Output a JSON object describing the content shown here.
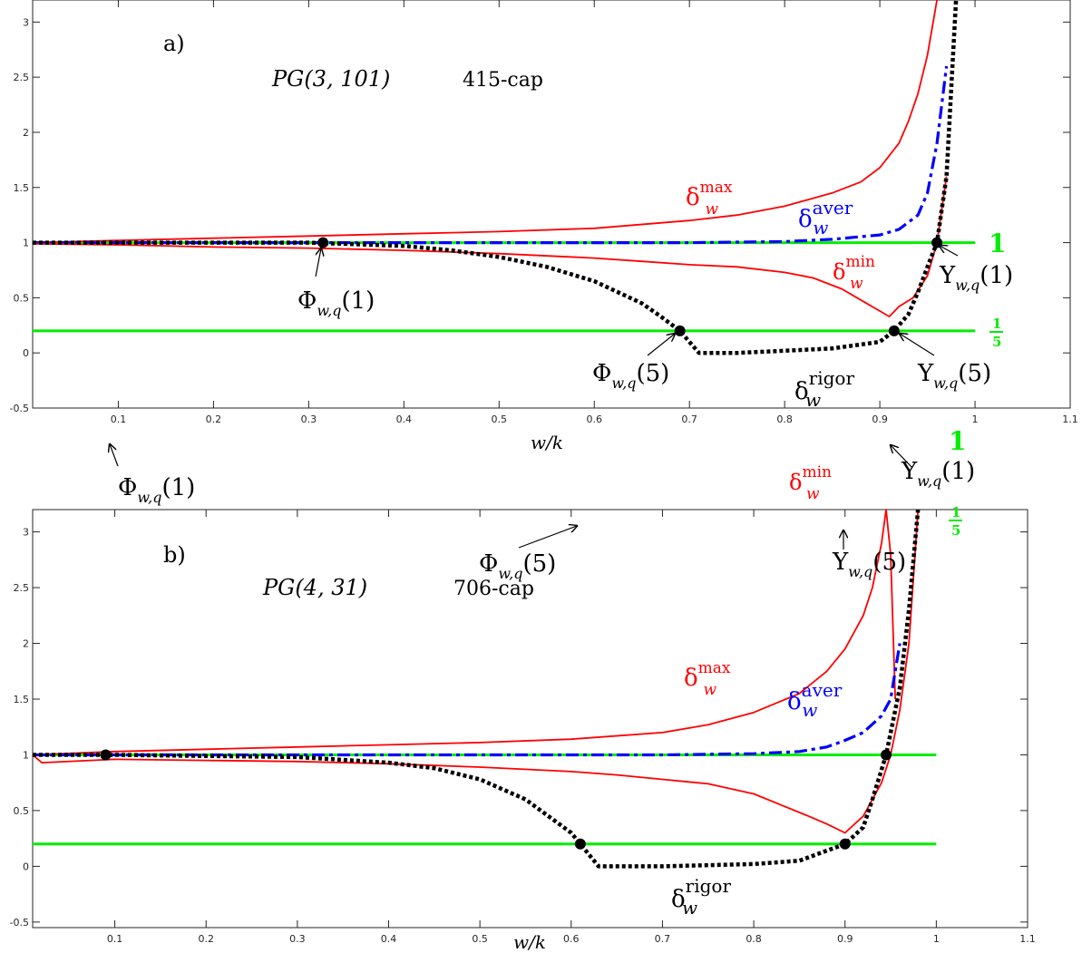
{
  "chart_data": [
    {
      "type": "line",
      "panel_label": "a)",
      "title": "PG(3, 101)",
      "subtitle": "415-cap",
      "xlabel": "w/k",
      "ylabel": "",
      "xlim": [
        0.01,
        1.1
      ],
      "ylim": [
        -0.5,
        3.2
      ],
      "xticks": [
        "0.1",
        "0.2",
        "0.3",
        "0.4",
        "0.5",
        "0.6",
        "0.7",
        "0.8",
        "0.9",
        "1",
        "1.1"
      ],
      "yticks": [
        "-0.5",
        "0",
        "0.5",
        "1",
        "1.5",
        "2",
        "2.5",
        "3"
      ],
      "hlines": [
        {
          "y": 1,
          "label": "1",
          "color": "#00ee00"
        },
        {
          "y": 0.2,
          "label": "1/5",
          "color": "#00ee00"
        }
      ],
      "series": [
        {
          "name": "δ_w^max",
          "color": "#ff0000",
          "style": "solid",
          "x": [
            0.01,
            0.1,
            0.2,
            0.3,
            0.4,
            0.5,
            0.6,
            0.7,
            0.75,
            0.8,
            0.85,
            0.88,
            0.9,
            0.92,
            0.93,
            0.94,
            0.95,
            0.96
          ],
          "y": [
            1.0,
            1.02,
            1.04,
            1.06,
            1.08,
            1.1,
            1.13,
            1.2,
            1.25,
            1.33,
            1.45,
            1.55,
            1.68,
            1.9,
            2.1,
            2.35,
            2.7,
            3.2
          ]
        },
        {
          "name": "δ_w^aver",
          "color": "#0000ff",
          "style": "dashdot",
          "x": [
            0.01,
            0.2,
            0.4,
            0.6,
            0.7,
            0.8,
            0.85,
            0.9,
            0.92,
            0.94,
            0.95,
            0.96,
            0.97
          ],
          "y": [
            1.0,
            1.0,
            1.0,
            1.0,
            1.0,
            1.01,
            1.03,
            1.07,
            1.12,
            1.25,
            1.45,
            1.9,
            2.6
          ]
        },
        {
          "name": "δ_w^min",
          "color": "#ff0000",
          "style": "solid",
          "x": [
            0.01,
            0.1,
            0.2,
            0.3,
            0.4,
            0.5,
            0.6,
            0.65,
            0.7,
            0.75,
            0.8,
            0.83,
            0.86,
            0.88,
            0.9,
            0.91,
            0.92,
            0.935,
            0.95,
            0.96,
            0.97
          ],
          "y": [
            0.99,
            0.98,
            0.96,
            0.95,
            0.93,
            0.9,
            0.86,
            0.83,
            0.8,
            0.78,
            0.73,
            0.68,
            0.58,
            0.48,
            0.38,
            0.33,
            0.42,
            0.5,
            0.7,
            1.0,
            1.6
          ]
        },
        {
          "name": "δ_w^rigor",
          "color": "#000000",
          "style": "dotted",
          "x": [
            0.01,
            0.2,
            0.3,
            0.4,
            0.45,
            0.5,
            0.55,
            0.6,
            0.65,
            0.67,
            0.69,
            0.71,
            0.75,
            0.8,
            0.85,
            0.9,
            0.915,
            0.93,
            0.94,
            0.95,
            0.96,
            0.97,
            0.98
          ],
          "y": [
            1.0,
            1.0,
            1.0,
            0.97,
            0.93,
            0.87,
            0.78,
            0.65,
            0.45,
            0.33,
            0.2,
            0.0,
            0.0,
            0.02,
            0.04,
            0.1,
            0.2,
            0.35,
            0.55,
            0.78,
            1.0,
            1.6,
            3.2
          ]
        }
      ],
      "points": [
        {
          "x": 0.315,
          "y": 1.0,
          "label": "Φ_{w,q}(1)"
        },
        {
          "x": 0.69,
          "y": 0.2,
          "label": "Φ_{w,q}(5)"
        },
        {
          "x": 0.915,
          "y": 0.2,
          "label": "Υ_{w,q}(5)"
        },
        {
          "x": 0.96,
          "y": 1.0,
          "label": "Υ_{w,q}(1)"
        }
      ]
    },
    {
      "type": "line",
      "panel_label": "b)",
      "title": "PG(4, 31)",
      "subtitle": "706-cap",
      "xlabel": "w/k",
      "ylabel": "",
      "xlim": [
        0.01,
        1.1
      ],
      "ylim": [
        -0.55,
        3.2
      ],
      "xticks": [
        "0.1",
        "0.2",
        "0.3",
        "0.4",
        "0.5",
        "0.6",
        "0.7",
        "0.8",
        "0.9",
        "1",
        "1.1"
      ],
      "yticks": [
        "-0.5",
        "0",
        "0.5",
        "1",
        "1.5",
        "2",
        "2.5",
        "3"
      ],
      "hlines": [
        {
          "y": 1,
          "label": "1",
          "color": "#00ee00"
        },
        {
          "y": 0.2,
          "label": "1/5",
          "color": "#00ee00"
        }
      ],
      "series": [
        {
          "name": "δ_w^max",
          "color": "#ff0000",
          "style": "solid",
          "x": [
            0.01,
            0.1,
            0.2,
            0.3,
            0.4,
            0.5,
            0.6,
            0.7,
            0.75,
            0.8,
            0.85,
            0.88,
            0.9,
            0.92,
            0.93,
            0.94,
            0.945,
            0.95,
            0.955
          ],
          "y": [
            1.0,
            1.03,
            1.05,
            1.07,
            1.09,
            1.11,
            1.14,
            1.2,
            1.27,
            1.38,
            1.55,
            1.75,
            1.95,
            2.25,
            2.5,
            2.9,
            3.2,
            2.8,
            1.5
          ]
        },
        {
          "name": "δ_w^aver",
          "color": "#0000ff",
          "style": "dashdot",
          "x": [
            0.01,
            0.2,
            0.4,
            0.6,
            0.7,
            0.8,
            0.85,
            0.88,
            0.9,
            0.92,
            0.94,
            0.95,
            0.96
          ],
          "y": [
            1.0,
            1.0,
            1.0,
            1.0,
            1.0,
            1.01,
            1.03,
            1.07,
            1.13,
            1.2,
            1.35,
            1.5,
            2.0
          ]
        },
        {
          "name": "δ_w^min",
          "color": "#ff0000",
          "style": "solid",
          "x": [
            0.01,
            0.02,
            0.1,
            0.2,
            0.3,
            0.4,
            0.5,
            0.6,
            0.65,
            0.7,
            0.75,
            0.8,
            0.83,
            0.86,
            0.88,
            0.9,
            0.92,
            0.94,
            0.95,
            0.96,
            0.97,
            0.98
          ],
          "y": [
            1.0,
            0.93,
            0.96,
            0.95,
            0.94,
            0.92,
            0.89,
            0.85,
            0.82,
            0.78,
            0.74,
            0.65,
            0.55,
            0.45,
            0.38,
            0.3,
            0.45,
            0.75,
            1.0,
            1.4,
            2.0,
            3.2
          ]
        },
        {
          "name": "δ_w^rigor",
          "color": "#000000",
          "style": "dotted",
          "x": [
            0.01,
            0.1,
            0.2,
            0.3,
            0.4,
            0.45,
            0.5,
            0.55,
            0.6,
            0.61,
            0.63,
            0.7,
            0.8,
            0.85,
            0.9,
            0.92,
            0.93,
            0.945,
            0.96,
            0.97,
            0.98
          ],
          "y": [
            1.0,
            1.0,
            0.99,
            0.98,
            0.93,
            0.88,
            0.78,
            0.6,
            0.3,
            0.2,
            0.0,
            0.0,
            0.02,
            0.05,
            0.2,
            0.35,
            0.6,
            1.0,
            1.6,
            2.3,
            3.2
          ]
        }
      ],
      "points": [
        {
          "x": 0.09,
          "y": 1.0,
          "label": "Φ_{w,q}(1)"
        },
        {
          "x": 0.61,
          "y": 0.2,
          "label": "Φ_{w,q}(5)"
        },
        {
          "x": 0.9,
          "y": 0.2,
          "label": "Υ_{w,q}(5)"
        },
        {
          "x": 0.945,
          "y": 1.0,
          "label": "Υ_{w,q}(1)"
        }
      ]
    }
  ],
  "panels": [
    {
      "panel_label": "a)",
      "title": "PG(3, 101)",
      "subtitle": "415-cap",
      "xlabel": "w/k",
      "label_max": {
        "base": "δ",
        "sup": "max",
        "sub": "w"
      },
      "label_aver": {
        "base": "δ",
        "sup": "aver",
        "sub": "w"
      },
      "label_min": {
        "base": "δ",
        "sup": "min",
        "sub": "w"
      },
      "label_rigor": {
        "base": "δ",
        "sup": "rigor",
        "sub": "w"
      },
      "hline_one": "1",
      "hline_fifth_num": "1",
      "hline_fifth_den": "5",
      "phi1": {
        "base": "Φ",
        "sub": "w,q",
        "arg": "(1)"
      },
      "phi5": {
        "base": "Φ",
        "sub": "w,q",
        "arg": "(5)"
      },
      "ups5": {
        "base": "Υ",
        "sub": "w,q",
        "arg": "(5)"
      },
      "ups1": {
        "base": "Υ",
        "sub": "w,q",
        "arg": "(1)"
      }
    },
    {
      "panel_label": "b)",
      "title": "PG(4, 31)",
      "subtitle": "706-cap",
      "xlabel": "w/k",
      "label_max": {
        "base": "δ",
        "sup": "max",
        "sub": "w"
      },
      "label_aver": {
        "base": "δ",
        "sup": "aver",
        "sub": "w"
      },
      "label_min": {
        "base": "δ",
        "sup": "min",
        "sub": "w"
      },
      "label_rigor": {
        "base": "δ",
        "sup": "rigor",
        "sub": "w"
      },
      "hline_one": "1",
      "hline_fifth_num": "1",
      "hline_fifth_den": "5",
      "phi1": {
        "base": "Φ",
        "sub": "w,q",
        "arg": "(1)"
      },
      "phi5": {
        "base": "Φ",
        "sub": "w,q",
        "arg": "(5)"
      },
      "ups5": {
        "base": "Υ",
        "sub": "w,q",
        "arg": "(5)"
      },
      "ups1": {
        "base": "Υ",
        "sub": "w,q",
        "arg": "(1)"
      }
    }
  ]
}
